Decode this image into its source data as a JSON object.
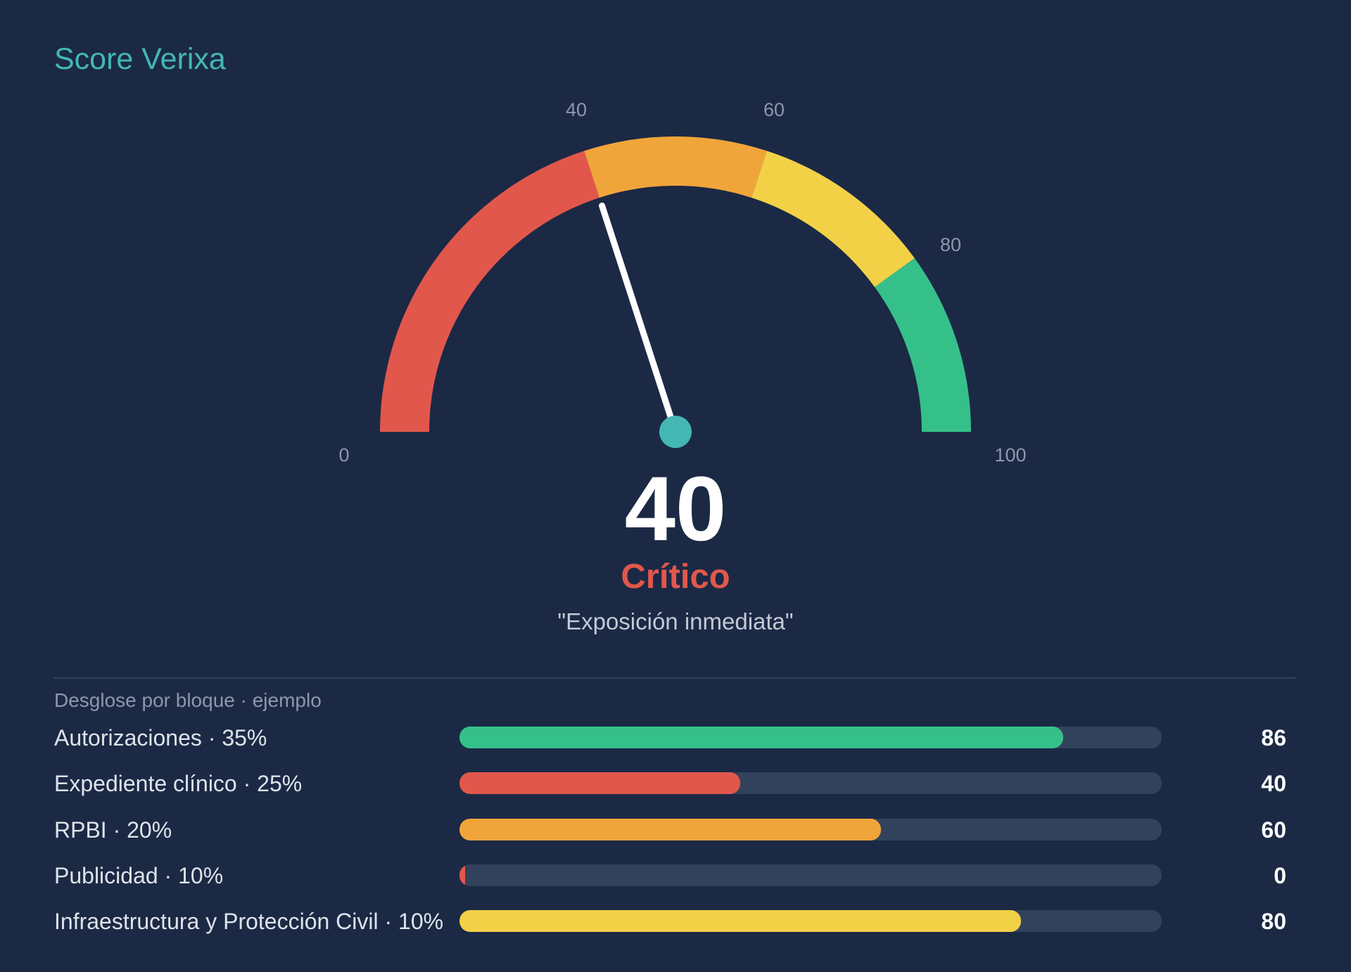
{
  "card": {
    "title": "Score Verixa"
  },
  "gauge": {
    "min": 0,
    "max": 100,
    "value": 40,
    "tick_labels": [
      "0",
      "40",
      "60",
      "80",
      "100"
    ],
    "segments": [
      {
        "from": 0,
        "to": 40,
        "color": "#e2574c"
      },
      {
        "from": 40,
        "to": 60,
        "color": "#f0a53a"
      },
      {
        "from": 60,
        "to": 80,
        "color": "#f2d147"
      },
      {
        "from": 80,
        "to": 100,
        "color": "#35c08a"
      }
    ],
    "needle_color": "#ffffff",
    "hub_color": "#44b7b5"
  },
  "score": {
    "value": "40",
    "status": "Crítico",
    "status_color": "#e2574c",
    "quote": "\"Exposición inmediata\""
  },
  "breakdown": {
    "caption": "Desglose por bloque · ejemplo",
    "rows": [
      {
        "label": "Autorizaciones · 35%",
        "value": 86,
        "value_text": "86",
        "color": "#35c08a"
      },
      {
        "label": "Expediente clínico · 25%",
        "value": 40,
        "value_text": "40",
        "color": "#e2574c"
      },
      {
        "label": "RPBI · 20%",
        "value": 60,
        "value_text": "60",
        "color": "#f0a53a"
      },
      {
        "label": "Publicidad · 10%",
        "value": 0,
        "value_text": "0",
        "color": "#e2574c"
      },
      {
        "label": "Infraestructura y Protección Civil · 10%",
        "value": 80,
        "value_text": "80",
        "color": "#f2d147"
      }
    ]
  },
  "colors": {
    "background": "#1b2945",
    "accent": "#44b7b5",
    "track": "#33425c"
  }
}
